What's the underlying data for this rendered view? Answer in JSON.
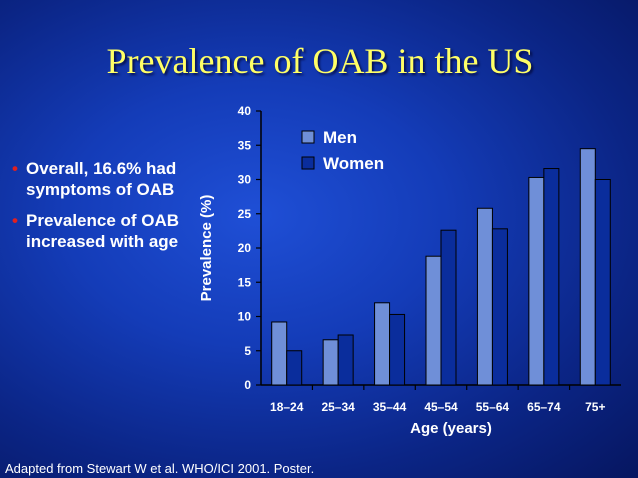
{
  "title": "Prevalence of OAB in the US",
  "bullets": [
    {
      "text": "Overall, 16.6% had symptoms of OAB"
    },
    {
      "text": "Prevalence of OAB increased with age"
    }
  ],
  "source": "Adapted from Stewart W et al. WHO/ICI 2001. Poster.",
  "colors": {
    "men": "#6f8fd8",
    "women": "#0a2d9c",
    "title": "#ffff66",
    "bullet": "#e02020"
  },
  "chart_data": {
    "type": "bar",
    "categories": [
      "18–24",
      "25–34",
      "35–44",
      "45–54",
      "55–64",
      "65–74",
      "75+"
    ],
    "series": [
      {
        "name": "Men",
        "values": [
          9.2,
          6.6,
          12.0,
          18.8,
          25.8,
          30.3,
          34.5
        ]
      },
      {
        "name": "Women",
        "values": [
          5.0,
          7.3,
          10.3,
          22.6,
          22.8,
          31.6,
          30.0
        ]
      }
    ],
    "xlabel": "Age (years)",
    "ylabel": "Prevalence (%)",
    "ylim": [
      0,
      40
    ],
    "yticks": [
      0,
      5,
      10,
      15,
      20,
      25,
      30,
      35,
      40
    ],
    "legend": "top-right",
    "grid": false
  }
}
